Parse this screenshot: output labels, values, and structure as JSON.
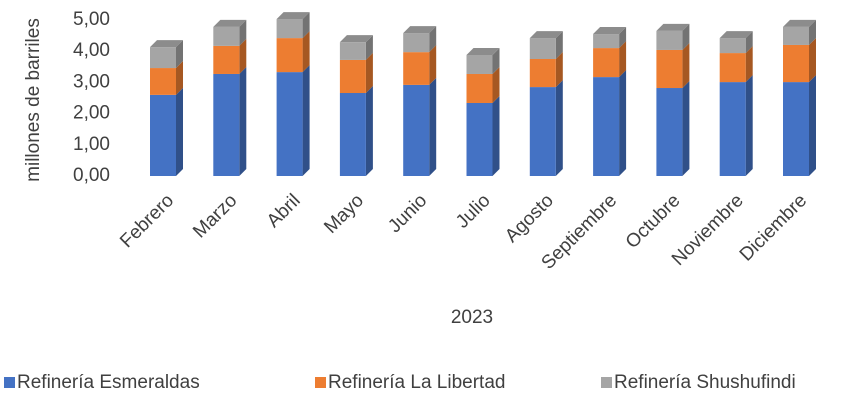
{
  "chart_data": {
    "type": "bar",
    "stacked": true,
    "three_d": true,
    "categories": [
      "Febrero",
      "Marzo",
      "Abril",
      "Mayo",
      "Junio",
      "Julio",
      "Agosto",
      "Septiembre",
      "Octubre",
      "Noviembre",
      "Diciembre"
    ],
    "series": [
      {
        "name": "Refinería Esmeraldas",
        "color": "#4472c4",
        "values": [
          2.6,
          3.27,
          3.33,
          2.66,
          2.92,
          2.34,
          2.85,
          3.17,
          2.82,
          3.01,
          3.01
        ]
      },
      {
        "name": "Refinería La Libertad",
        "color": "#ed7d31",
        "values": [
          0.86,
          0.9,
          1.09,
          1.06,
          1.05,
          0.93,
          0.9,
          0.93,
          1.22,
          0.93,
          1.19
        ]
      },
      {
        "name": "Refinería Shushufindi",
        "color": "#a5a5a5",
        "values": [
          0.67,
          0.61,
          0.61,
          0.57,
          0.61,
          0.61,
          0.67,
          0.45,
          0.61,
          0.48,
          0.58
        ]
      }
    ],
    "x_label": "2023",
    "y_label": "millones de barriles",
    "ylim": [
      0,
      5
    ],
    "yticks": [
      {
        "value": 0,
        "label": "0,00"
      },
      {
        "value": 1,
        "label": "1,00"
      },
      {
        "value": 2,
        "label": "2,00"
      },
      {
        "value": 3,
        "label": "3,00"
      },
      {
        "value": 4,
        "label": "4,00"
      },
      {
        "value": 5,
        "label": "5,00"
      }
    ],
    "legend": "bottom"
  }
}
